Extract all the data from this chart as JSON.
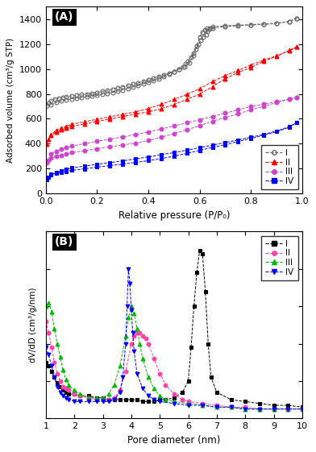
{
  "panel_A": {
    "xlabel": "Relative pressure (P/P₀)",
    "ylabel": "Adsorbed volume (cm³/g STP)",
    "ylim": [
      0,
      1500
    ],
    "xlim": [
      0.0,
      1.0
    ],
    "yticks": [
      0,
      200,
      400,
      600,
      800,
      1000,
      1200,
      1400
    ],
    "xticks": [
      0.0,
      0.2,
      0.4,
      0.6,
      0.8,
      1.0
    ],
    "series": {
      "I": {
        "color": "#666666",
        "marker": "o",
        "fillstyle": "none",
        "adsorption_x": [
          0.005,
          0.01,
          0.02,
          0.035,
          0.05,
          0.065,
          0.08,
          0.1,
          0.12,
          0.14,
          0.16,
          0.18,
          0.2,
          0.22,
          0.24,
          0.26,
          0.28,
          0.3,
          0.32,
          0.34,
          0.36,
          0.38,
          0.4,
          0.42,
          0.44,
          0.46,
          0.48,
          0.5,
          0.52,
          0.54,
          0.56,
          0.575,
          0.59,
          0.6,
          0.61,
          0.62,
          0.63,
          0.64,
          0.65,
          0.7,
          0.75,
          0.8,
          0.85,
          0.9,
          0.95,
          0.98
        ],
        "adsorption_y": [
          705,
          725,
          745,
          758,
          765,
          772,
          778,
          784,
          790,
          795,
          800,
          806,
          812,
          820,
          828,
          838,
          848,
          858,
          868,
          878,
          890,
          902,
          915,
          928,
          940,
          952,
          964,
          980,
          1000,
          1020,
          1052,
          1105,
          1185,
          1255,
          1295,
          1315,
          1325,
          1330,
          1338,
          1348,
          1352,
          1356,
          1362,
          1368,
          1382,
          1408
        ],
        "desorption_x": [
          0.98,
          0.95,
          0.9,
          0.85,
          0.8,
          0.75,
          0.7,
          0.65,
          0.64,
          0.63,
          0.625,
          0.615,
          0.605,
          0.595,
          0.585,
          0.575,
          0.565,
          0.555,
          0.545,
          0.535,
          0.52,
          0.5,
          0.48,
          0.46,
          0.44,
          0.42,
          0.4,
          0.38,
          0.36,
          0.34,
          0.32,
          0.3,
          0.28,
          0.26,
          0.24,
          0.22,
          0.2,
          0.18,
          0.16,
          0.14,
          0.12,
          0.1,
          0.08,
          0.06,
          0.04,
          0.02
        ],
        "desorption_y": [
          1408,
          1382,
          1365,
          1358,
          1353,
          1347,
          1340,
          1330,
          1318,
          1300,
          1278,
          1255,
          1228,
          1195,
          1162,
          1128,
          1092,
          1062,
          1040,
          1020,
          1000,
          980,
          960,
          940,
          920,
          905,
          892,
          880,
          868,
          855,
          845,
          832,
          822,
          812,
          804,
          796,
          788,
          783,
          776,
          770,
          766,
          760,
          752,
          742,
          730,
          710
        ]
      },
      "II": {
        "color": "#ff0000",
        "marker": "^",
        "fillstyle": "full",
        "adsorption_x": [
          0.005,
          0.01,
          0.02,
          0.04,
          0.06,
          0.08,
          0.1,
          0.15,
          0.2,
          0.25,
          0.3,
          0.35,
          0.4,
          0.45,
          0.5,
          0.55,
          0.6,
          0.65,
          0.7,
          0.75,
          0.8,
          0.85,
          0.9,
          0.95,
          0.98
        ],
        "adsorption_y": [
          395,
          435,
          468,
          490,
          510,
          525,
          538,
          558,
          578,
          598,
          618,
          638,
          655,
          680,
          715,
          755,
          798,
          858,
          922,
          972,
          1012,
          1062,
          1102,
          1150,
          1178
        ],
        "desorption_x": [
          0.98,
          0.95,
          0.9,
          0.85,
          0.8,
          0.75,
          0.7,
          0.65,
          0.6,
          0.55,
          0.5,
          0.45,
          0.4,
          0.35,
          0.3,
          0.25,
          0.2,
          0.15,
          0.1,
          0.08,
          0.06,
          0.04,
          0.02
        ],
        "desorption_y": [
          1178,
          1148,
          1105,
          1072,
          1032,
          988,
          948,
          898,
          842,
          796,
          756,
          716,
          682,
          656,
          636,
          616,
          596,
          576,
          556,
          540,
          526,
          506,
          476
        ]
      },
      "III": {
        "color": "#cc44cc",
        "marker": "o",
        "fillstyle": "full",
        "adsorption_x": [
          0.005,
          0.01,
          0.02,
          0.04,
          0.06,
          0.08,
          0.1,
          0.15,
          0.2,
          0.25,
          0.3,
          0.35,
          0.4,
          0.45,
          0.5,
          0.55,
          0.6,
          0.65,
          0.7,
          0.75,
          0.8,
          0.85,
          0.9,
          0.95,
          0.98
        ],
        "adsorption_y": [
          248,
          268,
          285,
          298,
          308,
          318,
          328,
          343,
          360,
          374,
          390,
          405,
          425,
          452,
          482,
          512,
          545,
          580,
          610,
          640,
          672,
          700,
          730,
          758,
          774
        ],
        "desorption_x": [
          0.98,
          0.95,
          0.9,
          0.85,
          0.8,
          0.75,
          0.7,
          0.65,
          0.6,
          0.55,
          0.5,
          0.45,
          0.4,
          0.35,
          0.3,
          0.25,
          0.2,
          0.15,
          0.1,
          0.08,
          0.06,
          0.04,
          0.02
        ],
        "desorption_y": [
          774,
          758,
          738,
          718,
          698,
          672,
          645,
          618,
          592,
          568,
          542,
          518,
          494,
          474,
          454,
          436,
          420,
          400,
          380,
          368,
          354,
          340,
          318
        ]
      },
      "IV": {
        "color": "#0000ff",
        "marker": "s",
        "fillstyle": "full",
        "adsorption_x": [
          0.005,
          0.01,
          0.02,
          0.04,
          0.06,
          0.08,
          0.1,
          0.15,
          0.2,
          0.25,
          0.3,
          0.35,
          0.4,
          0.45,
          0.5,
          0.55,
          0.6,
          0.65,
          0.7,
          0.75,
          0.8,
          0.85,
          0.9,
          0.95,
          0.98
        ],
        "adsorption_y": [
          112,
          132,
          150,
          162,
          170,
          178,
          186,
          198,
          212,
          224,
          236,
          250,
          264,
          280,
          300,
          322,
          346,
          370,
          392,
          418,
          442,
          468,
          496,
          532,
          572
        ],
        "desorption_x": [
          0.98,
          0.95,
          0.9,
          0.85,
          0.8,
          0.75,
          0.7,
          0.65,
          0.6,
          0.55,
          0.5,
          0.45,
          0.4,
          0.35,
          0.3,
          0.25,
          0.2,
          0.15,
          0.1,
          0.08,
          0.06,
          0.04,
          0.02
        ],
        "desorption_y": [
          572,
          536,
          502,
          474,
          452,
          430,
          410,
          388,
          368,
          348,
          328,
          312,
          294,
          278,
          262,
          248,
          234,
          220,
          205,
          195,
          183,
          170,
          154
        ]
      }
    }
  },
  "panel_B": {
    "xlabel": "Pore diameter (nm)",
    "ylabel": "dV/dD (cm³/g/nm)",
    "xlim": [
      1,
      10
    ],
    "ylim": [
      0,
      1.0
    ],
    "xticks": [
      1,
      2,
      3,
      4,
      5,
      6,
      7,
      8,
      9,
      10
    ],
    "series": {
      "I": {
        "color": "#000000",
        "marker": "s",
        "x": [
          1.0,
          1.1,
          1.2,
          1.3,
          1.4,
          1.5,
          1.6,
          1.7,
          1.8,
          2.0,
          2.2,
          2.5,
          2.8,
          3.0,
          3.2,
          3.4,
          3.6,
          3.8,
          4.0,
          4.2,
          4.4,
          4.6,
          4.8,
          5.0,
          5.2,
          5.5,
          5.8,
          6.0,
          6.1,
          6.2,
          6.3,
          6.4,
          6.5,
          6.6,
          6.7,
          6.8,
          7.0,
          7.5,
          8.0,
          8.5,
          9.0,
          9.5,
          10.0
        ],
        "y": [
          0.3,
          0.28,
          0.25,
          0.22,
          0.19,
          0.17,
          0.15,
          0.14,
          0.13,
          0.13,
          0.12,
          0.12,
          0.11,
          0.11,
          0.1,
          0.1,
          0.1,
          0.1,
          0.1,
          0.1,
          0.09,
          0.09,
          0.09,
          0.1,
          0.1,
          0.11,
          0.14,
          0.2,
          0.38,
          0.6,
          0.78,
          0.9,
          0.88,
          0.68,
          0.4,
          0.22,
          0.14,
          0.1,
          0.09,
          0.08,
          0.07,
          0.07,
          0.06
        ]
      },
      "II": {
        "color": "#ff44aa",
        "marker": "o",
        "x": [
          1.0,
          1.1,
          1.2,
          1.3,
          1.4,
          1.5,
          1.6,
          1.7,
          1.8,
          2.0,
          2.2,
          2.5,
          2.8,
          3.0,
          3.2,
          3.4,
          3.6,
          3.8,
          4.0,
          4.1,
          4.2,
          4.3,
          4.4,
          4.5,
          4.6,
          4.8,
          5.0,
          5.2,
          5.5,
          5.8,
          6.0,
          6.5,
          7.0,
          7.5,
          8.0,
          8.5,
          9.0,
          9.5,
          10.0
        ],
        "y": [
          0.52,
          0.46,
          0.38,
          0.3,
          0.24,
          0.2,
          0.17,
          0.16,
          0.15,
          0.13,
          0.12,
          0.11,
          0.1,
          0.1,
          0.1,
          0.11,
          0.15,
          0.25,
          0.4,
          0.44,
          0.46,
          0.46,
          0.44,
          0.43,
          0.4,
          0.32,
          0.24,
          0.18,
          0.13,
          0.1,
          0.09,
          0.08,
          0.07,
          0.06,
          0.06,
          0.05,
          0.05,
          0.05,
          0.05
        ]
      },
      "III": {
        "color": "#00bb00",
        "marker": "^",
        "x": [
          1.0,
          1.1,
          1.2,
          1.3,
          1.4,
          1.5,
          1.6,
          1.7,
          1.8,
          2.0,
          2.2,
          2.5,
          2.8,
          3.0,
          3.2,
          3.4,
          3.6,
          3.8,
          3.9,
          4.0,
          4.1,
          4.2,
          4.3,
          4.4,
          4.6,
          4.8,
          5.0,
          5.2,
          5.5,
          6.0,
          6.5,
          7.0,
          7.5,
          8.0,
          8.5,
          9.0,
          9.5,
          10.0
        ],
        "y": [
          0.6,
          0.62,
          0.57,
          0.48,
          0.4,
          0.33,
          0.26,
          0.21,
          0.18,
          0.15,
          0.13,
          0.11,
          0.11,
          0.11,
          0.13,
          0.18,
          0.28,
          0.44,
          0.54,
          0.6,
          0.56,
          0.48,
          0.4,
          0.32,
          0.22,
          0.16,
          0.12,
          0.1,
          0.09,
          0.08,
          0.07,
          0.06,
          0.06,
          0.05,
          0.05,
          0.05,
          0.05,
          0.05
        ]
      },
      "IV": {
        "color": "#0000ff",
        "marker": "v",
        "x": [
          1.0,
          1.1,
          1.2,
          1.3,
          1.4,
          1.5,
          1.6,
          1.7,
          1.8,
          2.0,
          2.2,
          2.5,
          2.8,
          3.0,
          3.2,
          3.4,
          3.6,
          3.7,
          3.8,
          3.85,
          3.9,
          3.95,
          4.0,
          4.05,
          4.1,
          4.2,
          4.4,
          4.6,
          4.8,
          5.0,
          5.5,
          6.0,
          6.5,
          7.0,
          7.5,
          8.0,
          8.5,
          9.0,
          9.5,
          10.0
        ],
        "y": [
          0.38,
          0.34,
          0.28,
          0.22,
          0.17,
          0.14,
          0.12,
          0.11,
          0.1,
          0.09,
          0.09,
          0.09,
          0.09,
          0.09,
          0.09,
          0.1,
          0.14,
          0.22,
          0.4,
          0.6,
          0.8,
          0.72,
          0.58,
          0.46,
          0.36,
          0.24,
          0.16,
          0.12,
          0.1,
          0.09,
          0.08,
          0.07,
          0.07,
          0.06,
          0.06,
          0.05,
          0.05,
          0.05,
          0.05,
          0.05
        ]
      }
    }
  }
}
